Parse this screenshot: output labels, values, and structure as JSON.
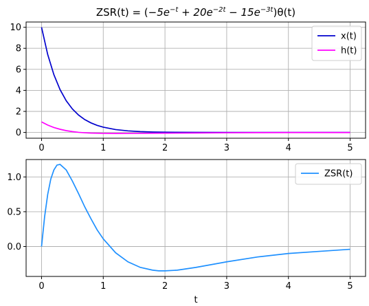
{
  "chart_data": [
    {
      "type": "line",
      "title_parts": {
        "lead": "ZSR(t) = (",
        "t1": "−5e",
        "t1_exp": "−t",
        "t2": " + 20e",
        "t2_exp": "−2t",
        "t3": " − 15e",
        "t3_exp": "−3t",
        "tail": ")θ(t)"
      },
      "xlabel": "",
      "ylabel": "",
      "xlim": [
        -0.25,
        5.25
      ],
      "ylim": [
        -0.55,
        10.5
      ],
      "xticks": [
        0,
        1,
        2,
        3,
        4,
        5
      ],
      "xtick_labels": [
        "0",
        "1",
        "2",
        "3",
        "4",
        "5"
      ],
      "yticks": [
        0,
        2,
        4,
        6,
        8,
        10
      ],
      "ytick_labels": [
        "0",
        "2",
        "4",
        "6",
        "8",
        "10"
      ],
      "grid": true,
      "legend": "top-right",
      "series": [
        {
          "name": "x(t)",
          "color": "#0000cd",
          "x": [
            0,
            0.1,
            0.2,
            0.3,
            0.4,
            0.5,
            0.6,
            0.7,
            0.8,
            0.9,
            1.0,
            1.2,
            1.4,
            1.6,
            1.8,
            2.0,
            2.5,
            3.0,
            3.5,
            4.0,
            4.5,
            5.0
          ],
          "y": [
            10.0,
            7.41,
            5.49,
            4.07,
            3.01,
            2.23,
            1.65,
            1.22,
            0.91,
            0.67,
            0.5,
            0.27,
            0.15,
            0.08,
            0.04,
            0.02,
            0.01,
            0.0,
            0.0,
            0.0,
            0.0,
            0.0
          ]
        },
        {
          "name": "h(t)",
          "color": "#ff00ff",
          "x": [
            0,
            0.1,
            0.2,
            0.3,
            0.4,
            0.5,
            0.6,
            0.7,
            0.8,
            1.0,
            1.2,
            1.5,
            2.0,
            2.5,
            3.0,
            3.5,
            4.0,
            4.5,
            5.0
          ],
          "y": [
            1.0,
            0.7,
            0.47,
            0.3,
            0.17,
            0.08,
            0.01,
            -0.03,
            -0.06,
            -0.09,
            -0.1,
            -0.09,
            -0.07,
            -0.05,
            -0.03,
            -0.02,
            -0.01,
            -0.01,
            -0.01
          ]
        }
      ]
    },
    {
      "type": "line",
      "xlabel": "t",
      "ylabel": "",
      "xlim": [
        -0.25,
        5.25
      ],
      "ylim": [
        -0.43,
        1.25
      ],
      "xticks": [
        0,
        1,
        2,
        3,
        4,
        5
      ],
      "xtick_labels": [
        "0",
        "1",
        "2",
        "3",
        "4",
        "5"
      ],
      "yticks": [
        0.0,
        0.5,
        1.0
      ],
      "ytick_labels": [
        "0.0",
        "0.5",
        "1.0"
      ],
      "grid": true,
      "legend": "top-right",
      "series": [
        {
          "name": "ZSR(t)",
          "color": "#1e90ff",
          "x": [
            0,
            0.05,
            0.1,
            0.15,
            0.2,
            0.25,
            0.3,
            0.4,
            0.5,
            0.6,
            0.7,
            0.8,
            0.9,
            1.0,
            1.2,
            1.4,
            1.6,
            1.8,
            1.9,
            2.0,
            2.2,
            2.5,
            3.0,
            3.5,
            4.0,
            4.5,
            5.0
          ],
          "y": [
            0.0,
            0.43,
            0.75,
            0.97,
            1.1,
            1.17,
            1.18,
            1.1,
            0.94,
            0.76,
            0.57,
            0.4,
            0.24,
            0.11,
            -0.09,
            -0.22,
            -0.3,
            -0.34,
            -0.35,
            -0.35,
            -0.34,
            -0.3,
            -0.22,
            -0.15,
            -0.1,
            -0.07,
            -0.04
          ]
        }
      ]
    }
  ]
}
